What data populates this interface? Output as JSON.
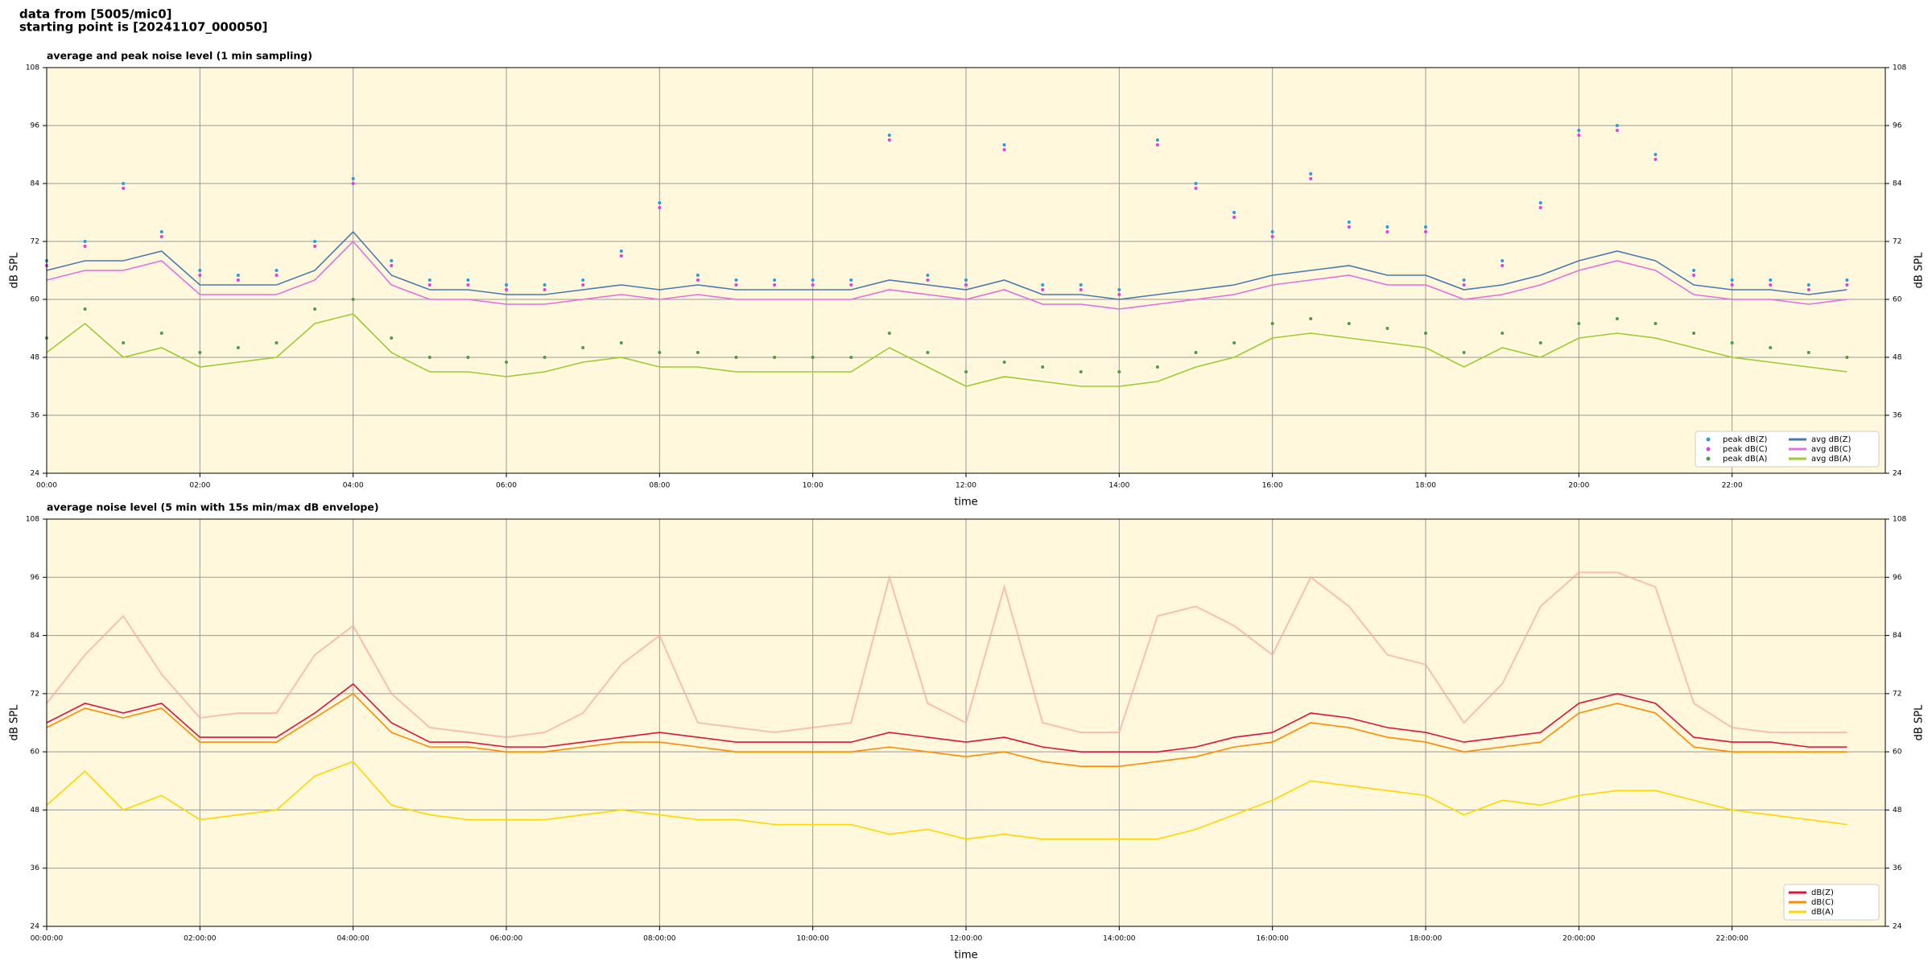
{
  "header": {
    "lines": [
      "data from [5005/mic0]",
      "starting point is [20241107_000050]"
    ]
  },
  "chart_data": [
    {
      "type": "line",
      "title": "average and peak noise level (1 min sampling)",
      "xlabel": "time",
      "ylabel": "dB SPL",
      "facecolor": "#fff8dc",
      "grid": true,
      "legend": "lower right",
      "legend_columns": 2,
      "xlim": [
        0,
        24
      ],
      "ylim": [
        24,
        108
      ],
      "xticks": [
        {
          "value": 0,
          "label": "00:00"
        },
        {
          "value": 2,
          "label": "02:00"
        },
        {
          "value": 4,
          "label": "04:00"
        },
        {
          "value": 6,
          "label": "06:00"
        },
        {
          "value": 8,
          "label": "08:00"
        },
        {
          "value": 10,
          "label": "10:00"
        },
        {
          "value": 12,
          "label": "12:00"
        },
        {
          "value": 14,
          "label": "14:00"
        },
        {
          "value": 16,
          "label": "16:00"
        },
        {
          "value": 18,
          "label": "18:00"
        },
        {
          "value": 20,
          "label": "20:00"
        },
        {
          "value": 22,
          "label": "22:00"
        }
      ],
      "yticks": [
        24,
        36,
        48,
        60,
        72,
        84,
        96,
        108
      ],
      "x": [
        0,
        0.5,
        1,
        1.5,
        2,
        2.5,
        3,
        3.5,
        4,
        4.5,
        5,
        5.5,
        6,
        6.5,
        7,
        7.5,
        8,
        8.5,
        9,
        9.5,
        10,
        10.5,
        11,
        11.5,
        12,
        12.5,
        13,
        13.5,
        14,
        14.5,
        15,
        15.5,
        16,
        16.5,
        17,
        17.5,
        18,
        18.5,
        19,
        19.5,
        20,
        20.5,
        21,
        21.5,
        22,
        22.5,
        23,
        23.5
      ],
      "series": [
        {
          "name": "peak dB(Z)",
          "kind": "scatter",
          "color": "#2e9bd6",
          "values": [
            68,
            72,
            84,
            74,
            66,
            65,
            66,
            72,
            85,
            68,
            64,
            64,
            63,
            63,
            64,
            70,
            80,
            65,
            64,
            64,
            64,
            64,
            94,
            65,
            64,
            92,
            63,
            63,
            62,
            93,
            84,
            78,
            74,
            86,
            76,
            75,
            75,
            64,
            68,
            80,
            95,
            96,
            90,
            66,
            64,
            64,
            63,
            64
          ]
        },
        {
          "name": "peak dB(C)",
          "kind": "scatter",
          "color": "#e040e0",
          "values": [
            67,
            71,
            83,
            73,
            65,
            64,
            65,
            71,
            84,
            67,
            63,
            63,
            62,
            62,
            63,
            69,
            79,
            64,
            63,
            63,
            63,
            63,
            93,
            64,
            63,
            91,
            62,
            62,
            61,
            92,
            83,
            77,
            73,
            85,
            75,
            74,
            74,
            63,
            67,
            79,
            94,
            95,
            89,
            65,
            63,
            63,
            62,
            63
          ]
        },
        {
          "name": "peak dB(A)",
          "kind": "scatter",
          "color": "#4f9a4f",
          "values": [
            52,
            58,
            51,
            53,
            49,
            50,
            51,
            58,
            60,
            52,
            48,
            48,
            47,
            48,
            50,
            51,
            49,
            49,
            48,
            48,
            48,
            48,
            53,
            49,
            45,
            47,
            46,
            45,
            45,
            46,
            49,
            51,
            55,
            56,
            55,
            54,
            53,
            49,
            53,
            51,
            55,
            56,
            55,
            53,
            51,
            50,
            49,
            48
          ]
        },
        {
          "name": "avg dB(Z)",
          "kind": "line",
          "color": "#4a78b0",
          "values": [
            66,
            68,
            68,
            70,
            63,
            63,
            63,
            66,
            74,
            65,
            62,
            62,
            61,
            61,
            62,
            63,
            62,
            63,
            62,
            62,
            62,
            62,
            64,
            63,
            62,
            64,
            61,
            61,
            60,
            61,
            62,
            63,
            65,
            66,
            67,
            65,
            65,
            62,
            63,
            65,
            68,
            70,
            68,
            63,
            62,
            62,
            61,
            62
          ]
        },
        {
          "name": "avg dB(C)",
          "kind": "line",
          "color": "#e070e0",
          "values": [
            64,
            66,
            66,
            68,
            61,
            61,
            61,
            64,
            72,
            63,
            60,
            60,
            59,
            59,
            60,
            61,
            60,
            61,
            60,
            60,
            60,
            60,
            62,
            61,
            60,
            62,
            59,
            59,
            58,
            59,
            60,
            61,
            63,
            64,
            65,
            63,
            63,
            60,
            61,
            63,
            66,
            68,
            66,
            61,
            60,
            60,
            59,
            60
          ]
        },
        {
          "name": "avg dB(A)",
          "kind": "line",
          "color": "#9acd32",
          "values": [
            49,
            55,
            48,
            50,
            46,
            47,
            48,
            55,
            57,
            49,
            45,
            45,
            44,
            45,
            47,
            48,
            46,
            46,
            45,
            45,
            45,
            45,
            50,
            46,
            42,
            44,
            43,
            42,
            42,
            43,
            46,
            48,
            52,
            53,
            52,
            51,
            50,
            46,
            50,
            48,
            52,
            53,
            52,
            50,
            48,
            47,
            46,
            45
          ]
        }
      ]
    },
    {
      "type": "line",
      "title": "average noise level (5 min with 15s min/max dB envelope)",
      "xlabel": "time",
      "ylabel": "dB SPL",
      "facecolor": "#fff8dc",
      "grid": true,
      "legend": "lower right",
      "legend_columns": 1,
      "xlim": [
        0,
        24
      ],
      "ylim": [
        24,
        108
      ],
      "xticks": [
        {
          "value": 0,
          "label": "00:00:00"
        },
        {
          "value": 2,
          "label": "02:00:00"
        },
        {
          "value": 4,
          "label": "04:00:00"
        },
        {
          "value": 6,
          "label": "06:00:00"
        },
        {
          "value": 8,
          "label": "08:00:00"
        },
        {
          "value": 10,
          "label": "10:00:00"
        },
        {
          "value": 12,
          "label": "12:00:00"
        },
        {
          "value": 14,
          "label": "14:00:00"
        },
        {
          "value": 16,
          "label": "16:00:00"
        },
        {
          "value": 18,
          "label": "18:00:00"
        },
        {
          "value": 20,
          "label": "20:00:00"
        },
        {
          "value": 22,
          "label": "22:00:00"
        }
      ],
      "yticks": [
        24,
        36,
        48,
        60,
        72,
        84,
        96,
        108
      ],
      "x": [
        0,
        0.5,
        1,
        1.5,
        2,
        2.5,
        3,
        3.5,
        4,
        4.5,
        5,
        5.5,
        6,
        6.5,
        7,
        7.5,
        8,
        8.5,
        9,
        9.5,
        10,
        10.5,
        11,
        11.5,
        12,
        12.5,
        13,
        13.5,
        14,
        14.5,
        15,
        15.5,
        16,
        16.5,
        17,
        17.5,
        18,
        18.5,
        19,
        19.5,
        20,
        20.5,
        21,
        21.5,
        22,
        22.5,
        23,
        23.5
      ],
      "envelope": {
        "color": "#f4a8a0",
        "values": [
          70,
          80,
          88,
          76,
          67,
          68,
          68,
          80,
          86,
          72,
          65,
          64,
          63,
          64,
          68,
          78,
          84,
          66,
          65,
          64,
          65,
          66,
          96,
          70,
          66,
          94,
          66,
          64,
          64,
          88,
          90,
          86,
          80,
          96,
          90,
          80,
          78,
          66,
          74,
          90,
          97,
          97,
          94,
          70,
          65,
          64,
          64,
          64
        ]
      },
      "series": [
        {
          "name": "dB(Z)",
          "kind": "line",
          "color": "#dc143c",
          "values": [
            66,
            70,
            68,
            70,
            63,
            63,
            63,
            68,
            74,
            66,
            62,
            62,
            61,
            61,
            62,
            63,
            64,
            63,
            62,
            62,
            62,
            62,
            64,
            63,
            62,
            63,
            61,
            60,
            60,
            60,
            61,
            63,
            64,
            68,
            67,
            65,
            64,
            62,
            63,
            64,
            70,
            72,
            70,
            63,
            62,
            62,
            61,
            61
          ]
        },
        {
          "name": "dB(C)",
          "kind": "line",
          "color": "#ff8c00",
          "values": [
            65,
            69,
            67,
            69,
            62,
            62,
            62,
            67,
            72,
            64,
            61,
            61,
            60,
            60,
            61,
            62,
            62,
            61,
            60,
            60,
            60,
            60,
            61,
            60,
            59,
            60,
            58,
            57,
            57,
            58,
            59,
            61,
            62,
            66,
            65,
            63,
            62,
            60,
            61,
            62,
            68,
            70,
            68,
            61,
            60,
            60,
            60,
            60
          ]
        },
        {
          "name": "dB(A)",
          "kind": "line",
          "color": "#ffd700",
          "values": [
            49,
            56,
            48,
            51,
            46,
            47,
            48,
            55,
            58,
            49,
            47,
            46,
            46,
            46,
            47,
            48,
            47,
            46,
            46,
            45,
            45,
            45,
            43,
            44,
            42,
            43,
            42,
            42,
            42,
            42,
            44,
            47,
            50,
            54,
            53,
            52,
            51,
            47,
            50,
            49,
            51,
            52,
            52,
            50,
            48,
            47,
            46,
            45
          ]
        }
      ]
    }
  ]
}
